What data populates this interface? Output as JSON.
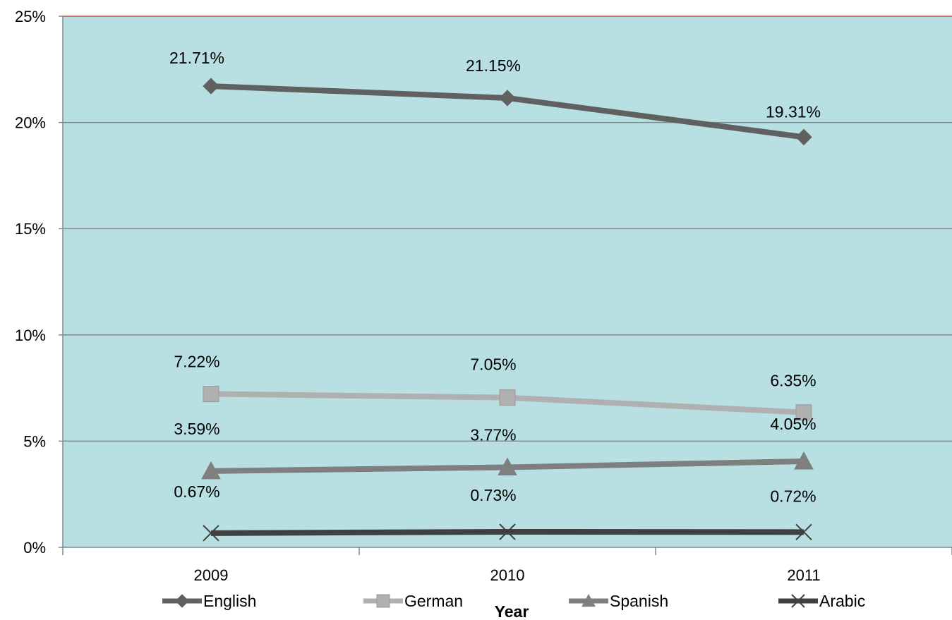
{
  "chart_data": {
    "type": "line",
    "title": "",
    "xlabel": "Year",
    "ylabel": "",
    "categories": [
      "2009",
      "2010",
      "2011"
    ],
    "ylim": [
      0,
      25
    ],
    "y_ticks": [
      0,
      5,
      10,
      15,
      20,
      25
    ],
    "y_tick_labels": [
      "0%",
      "5%",
      "10%",
      "15%",
      "20%",
      "25%"
    ],
    "grid": true,
    "legend_position": "bottom",
    "plot_background": "#b8e0e3",
    "series": [
      {
        "name": "English",
        "values": [
          21.71,
          21.15,
          19.31
        ],
        "labels": [
          "21.71%",
          "21.15%",
          "19.31%"
        ],
        "color": "#606060",
        "marker": "diamond"
      },
      {
        "name": "German",
        "values": [
          7.22,
          7.05,
          6.35
        ],
        "labels": [
          "7.22%",
          "7.05%",
          "6.35%"
        ],
        "color": "#b0b0b0",
        "marker": "square"
      },
      {
        "name": "Spanish",
        "values": [
          3.59,
          3.77,
          4.05
        ],
        "labels": [
          "3.59%",
          "3.77%",
          "4.05%"
        ],
        "color": "#7f7f7f",
        "marker": "triangle"
      },
      {
        "name": "Arabic",
        "values": [
          0.67,
          0.73,
          0.72
        ],
        "labels": [
          "0.67%",
          "0.73%",
          "0.72%"
        ],
        "color": "#404040",
        "marker": "x"
      }
    ]
  }
}
